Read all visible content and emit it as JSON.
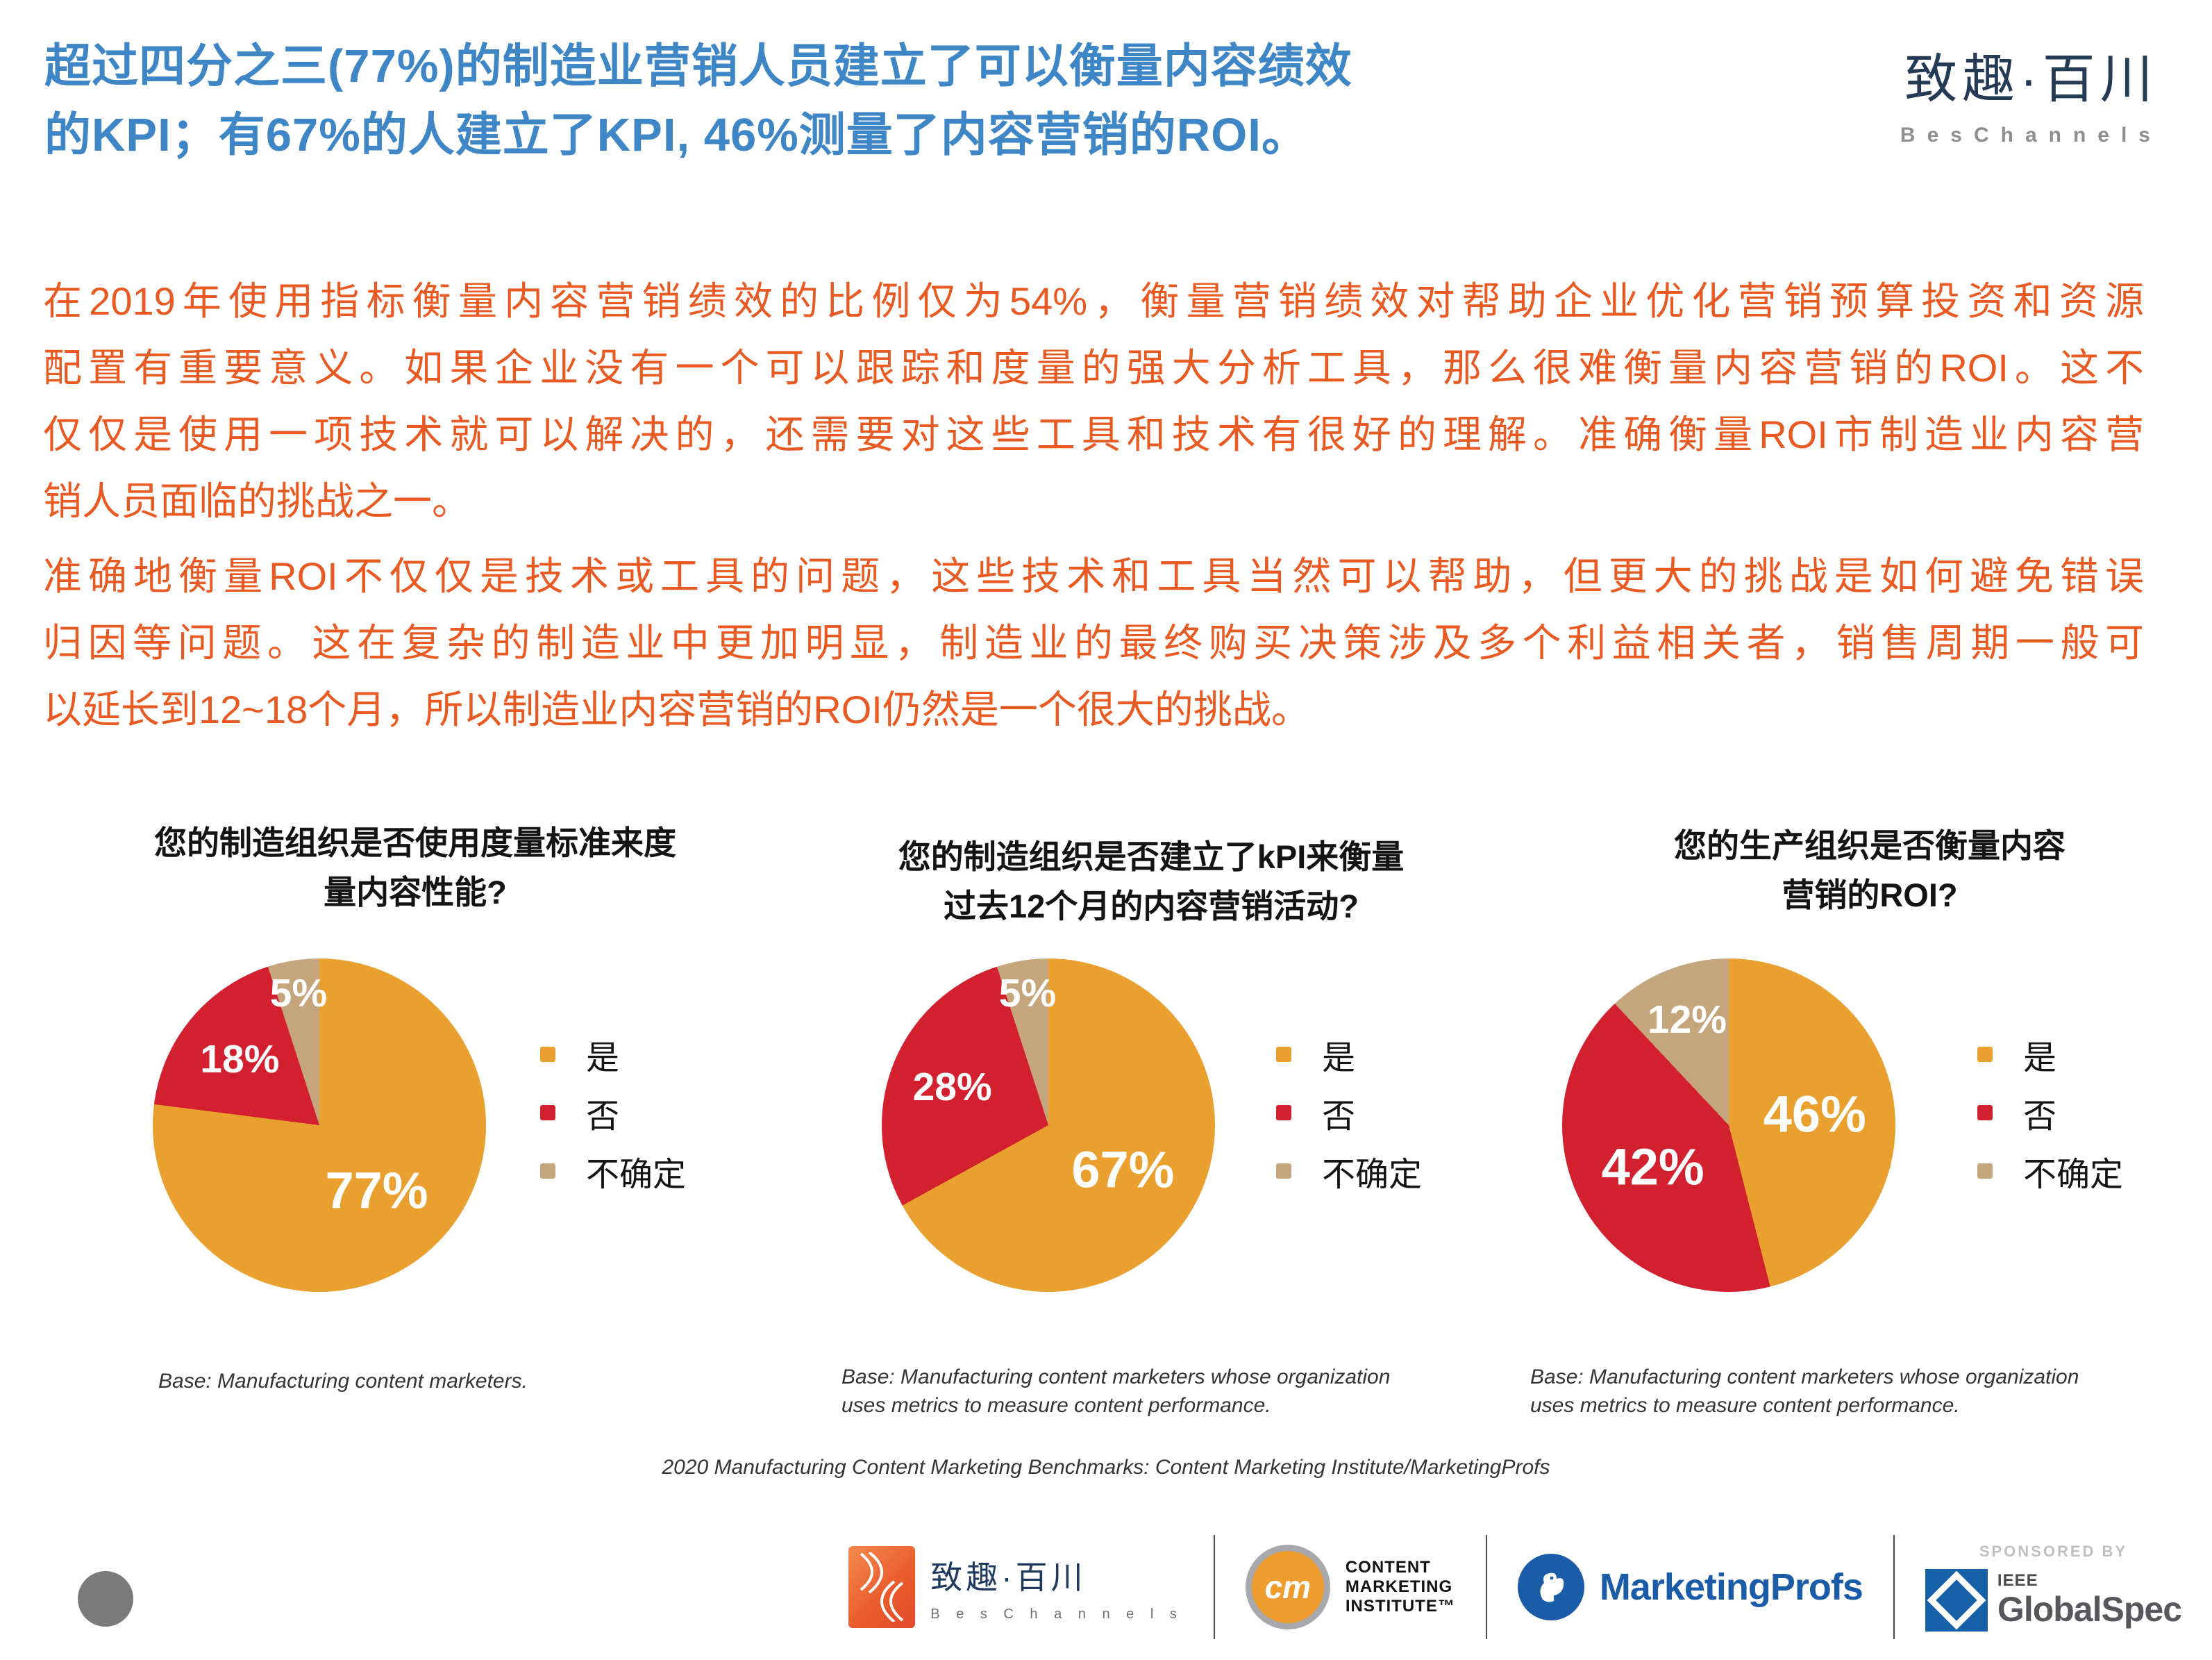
{
  "colors": {
    "title_blue": "#3E86C6",
    "body_orange": "#E85A22",
    "pie_yes": "#EAA02F",
    "pie_no": "#D2202F",
    "pie_unsure": "#C5A67C"
  },
  "header": {
    "title_lines": [
      "超过四分之三(77%)的制造业营销人员建立了可以衡量内容绩效",
      "的KPI；有67%的人建立了KPI, 46%测量了内容营销的ROI。"
    ],
    "brand": {
      "cn": "致趣·百川",
      "en": "BesChannels"
    }
  },
  "paragraphs": [
    {
      "text": "在2019年使用指标衡量内容营销绩效的比例仅为54%，衡量营销绩效对帮助企业优化营销预算投资和资源配置有重要意义。如果企业没有一个可以跟踪和度量的强大分析工具，那么很难衡量内容营销的ROI。这不仅仅是使用一项技术就可以解决的，还需要对这些工具和技术有很好的理解。准确衡量ROI市制造业内容营销人员面临的挑战之一。",
      "lines": [
        "在2019年使用指标衡量内容营销绩效的比例仅为54%，衡量营销绩效对帮助企业优化营销预算投资和资源",
        "配置有重要意义。如果企业没有一个可以跟踪和度量的强大分析工具，那么很难衡量内容营销的ROI。这不",
        "仅仅是使用一项技术就可以解决的，还需要对这些工具和技术有很好的理解。准确衡量ROI市制造业内容营",
        "销人员面临的挑战之一。"
      ]
    },
    {
      "text": "准确地衡量ROI不仅仅是技术或工具的问题，这些技术和工具当然可以帮助，但更大的挑战是如何避免错误归因等问题。这在复杂的制造业中更加明显，制造业的最终购买决策涉及多个利益相关者，销售周期一般可以延长到12~18个月，所以制造业内容营销的ROI仍然是一个很大的挑战。",
      "lines": [
        "准确地衡量ROI不仅仅是技术或工具的问题，这些技术和工具当然可以帮助，但更大的挑战是如何避免错误",
        "归因等问题。这在复杂的制造业中更加明显，制造业的最终购买决策涉及多个利益相关者，销售周期一般可",
        "以延长到12~18个月，所以制造业内容营销的ROI仍然是一个很大的挑战。"
      ]
    }
  ],
  "chart_data": [
    {
      "type": "pie",
      "title": "您的制造组织是否使用度量标准来度量内容性能?",
      "title_lines": [
        "您的制造组织是否使用度量标准来度",
        "量内容性能?"
      ],
      "categories": [
        "是",
        "否",
        "不确定"
      ],
      "values": [
        77,
        18,
        5
      ],
      "legend_position": "right",
      "base_lines": [
        "Base: Manufacturing content marketers."
      ]
    },
    {
      "type": "pie",
      "title": "您的制造组织是否建立了kPI来衡量过去12个月的内容营销活动?",
      "title_lines": [
        "您的制造组织是否建立了kPI来衡量",
        "过去12个月的内容营销活动?"
      ],
      "categories": [
        "是",
        "否",
        "不确定"
      ],
      "values": [
        67,
        28,
        5
      ],
      "legend_position": "right",
      "base_lines": [
        "Base: Manufacturing content marketers whose organization",
        "uses metrics to measure content performance."
      ]
    },
    {
      "type": "pie",
      "title": "您的生产组织是否衡量内容营销的ROI?",
      "title_lines": [
        "您的生产组织是否衡量内容",
        "营销的ROI?"
      ],
      "categories": [
        "是",
        "否",
        "不确定"
      ],
      "values": [
        46,
        42,
        12
      ],
      "legend_position": "right",
      "base_lines": [
        "Base: Manufacturing content marketers whose organization",
        "uses metrics to measure content performance."
      ]
    }
  ],
  "source": "2020 Manufacturing Content Marketing Benchmarks: Content Marketing Institute/MarketingProfs",
  "footer": {
    "beschannels": {
      "cn": "致趣·百川",
      "en": "B e s C h a n n e l s"
    },
    "cmi": {
      "abbr": "cm",
      "lines": [
        "CONTENT",
        "MARKETING",
        "INSTITUTE™"
      ]
    },
    "marketingprofs": "MarketingProfs",
    "sponsored_by": "SPONSORED BY",
    "globalspec": {
      "ieee": "IEEE",
      "name": "GlobalSpec"
    }
  }
}
